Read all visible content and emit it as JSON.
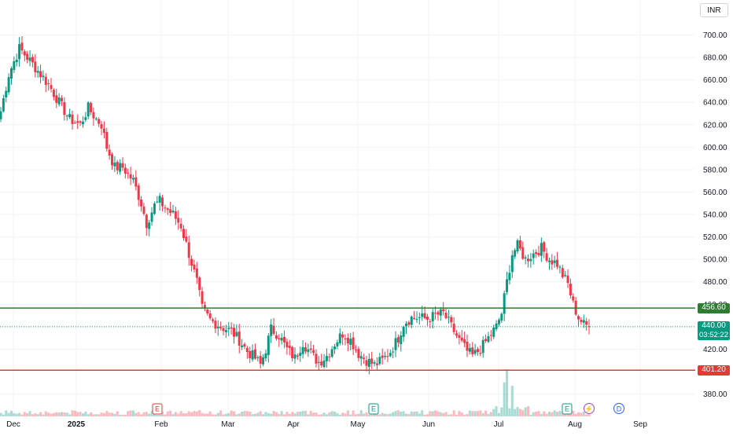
{
  "chart_data": {
    "type": "candlestick",
    "currency": "INR",
    "y_ticks": [
      380,
      420,
      440,
      460,
      480,
      500,
      520,
      540,
      560,
      580,
      600,
      620,
      640,
      660,
      680,
      700
    ],
    "y_tick_labels": [
      "380.00",
      "420.00",
      "440.00",
      "460.00",
      "480.00",
      "500.00",
      "520.00",
      "540.00",
      "560.00",
      "580.00",
      "600.00",
      "620.00",
      "640.00",
      "660.00",
      "680.00",
      "700.00"
    ],
    "x_ticks": [
      "Dec",
      "2025",
      "Feb",
      "Mar",
      "Apr",
      "May",
      "Jun",
      "Jul",
      "Aug",
      "Sep"
    ],
    "levels": [
      {
        "value": 456.6,
        "label": "456.60",
        "color": "#2e7d32"
      },
      {
        "value": 401.2,
        "label": "401.20",
        "color": "#e53935"
      }
    ],
    "last_price": {
      "value": 440.0,
      "label": "440.00",
      "countdown": "03:52:22",
      "color": "#089981"
    },
    "waypoints": [
      [
        0,
        632
      ],
      [
        3,
        665
      ],
      [
        7,
        688
      ],
      [
        10,
        680
      ],
      [
        14,
        668
      ],
      [
        18,
        656
      ],
      [
        22,
        640
      ],
      [
        26,
        625
      ],
      [
        30,
        620
      ],
      [
        33,
        635
      ],
      [
        36,
        625
      ],
      [
        38,
        620
      ],
      [
        40,
        600
      ],
      [
        43,
        582
      ],
      [
        46,
        582
      ],
      [
        50,
        570
      ],
      [
        53,
        550
      ],
      [
        55,
        532
      ],
      [
        58,
        548
      ],
      [
        60,
        552
      ],
      [
        62,
        546
      ],
      [
        65,
        540
      ],
      [
        68,
        530
      ],
      [
        71,
        505
      ],
      [
        74,
        480
      ],
      [
        76,
        456
      ],
      [
        79,
        446
      ],
      [
        83,
        440
      ],
      [
        87,
        436
      ],
      [
        90,
        428
      ],
      [
        93,
        418
      ],
      [
        96,
        412
      ],
      [
        98,
        406
      ],
      [
        100,
        420
      ],
      [
        102,
        438
      ],
      [
        105,
        432
      ],
      [
        108,
        420
      ],
      [
        111,
        412
      ],
      [
        114,
        426
      ],
      [
        117,
        416
      ],
      [
        120,
        408
      ],
      [
        123,
        414
      ],
      [
        126,
        425
      ],
      [
        129,
        434
      ],
      [
        132,
        428
      ],
      [
        135,
        416
      ],
      [
        138,
        410
      ],
      [
        141,
        406
      ],
      [
        144,
        410
      ],
      [
        147,
        418
      ],
      [
        150,
        430
      ],
      [
        152,
        443
      ],
      [
        155,
        448
      ],
      [
        158,
        448
      ],
      [
        161,
        447
      ],
      [
        164,
        450
      ],
      [
        167,
        452
      ],
      [
        170,
        440
      ],
      [
        173,
        428
      ],
      [
        176,
        418
      ],
      [
        178,
        414
      ],
      [
        181,
        420
      ],
      [
        184,
        430
      ],
      [
        187,
        440
      ],
      [
        189,
        452
      ],
      [
        191,
        480
      ],
      [
        193,
        505
      ],
      [
        195,
        512
      ],
      [
        198,
        500
      ],
      [
        201,
        505
      ],
      [
        204,
        510
      ],
      [
        207,
        500
      ],
      [
        210,
        496
      ],
      [
        212,
        486
      ],
      [
        214,
        478
      ],
      [
        216,
        460
      ],
      [
        218,
        448
      ],
      [
        220,
        442
      ],
      [
        222,
        440
      ]
    ],
    "volume_events": [
      {
        "label": "E",
        "color": "#e53935"
      },
      {
        "label": "E",
        "color": "#089981"
      },
      {
        "label": "E",
        "color": "#089981"
      },
      {
        "label": "⚡",
        "color": "#ab47bc"
      },
      {
        "label": "D",
        "color": "#2962ff"
      }
    ]
  }
}
